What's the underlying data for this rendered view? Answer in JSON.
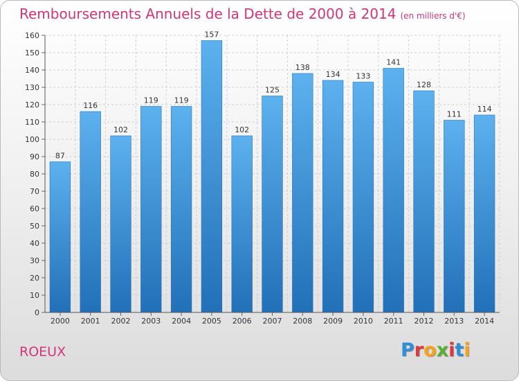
{
  "title": "Remboursements Annuels de la Dette de 2000 à 2014",
  "unit": "(en milliers d'€)",
  "commune": "ROEUX",
  "logo": {
    "letters": [
      "P",
      "r",
      "o",
      "x",
      "i",
      "t",
      "i"
    ],
    "colors": [
      "#2d8fd5",
      "#e0373d",
      "#f6a21a",
      "#59b030",
      "#e0373d",
      "#2d8fd5",
      "#f6a21a"
    ]
  },
  "chart_data": {
    "type": "bar",
    "title": "Remboursements Annuels de la Dette de 2000 à 2014",
    "categories": [
      "2000",
      "2001",
      "2002",
      "2003",
      "2004",
      "2005",
      "2006",
      "2007",
      "2008",
      "2009",
      "2010",
      "2011",
      "2012",
      "2013",
      "2014"
    ],
    "values": [
      87,
      116,
      102,
      119,
      119,
      157,
      102,
      125,
      138,
      134,
      133,
      141,
      128,
      111,
      114
    ],
    "ylim": [
      0,
      160
    ],
    "yticks": [
      0,
      10,
      20,
      30,
      40,
      50,
      60,
      70,
      80,
      90,
      100,
      110,
      120,
      130,
      140,
      150,
      160
    ],
    "grid": true,
    "bar_color": "#3e9be0",
    "bar_color_dark": "#2270b8"
  }
}
